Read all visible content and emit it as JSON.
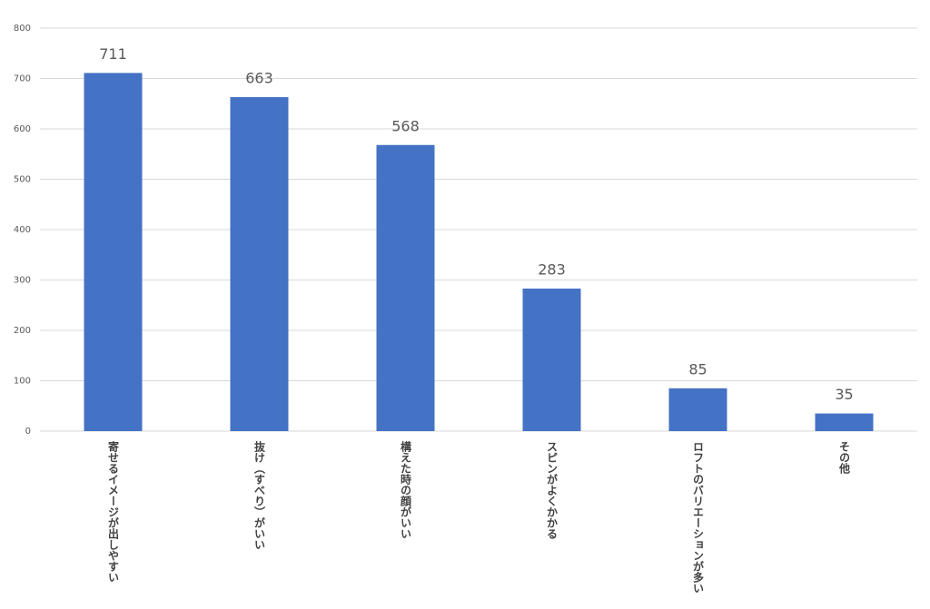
{
  "chart_data": {
    "type": "bar",
    "categories": [
      "寄せるイメージが出しやすい",
      "抜け（すべり）がいい",
      "構えた時の顔がいい",
      "スピンがよくかかる",
      "ロフトのバリエーションが多い",
      "その他"
    ],
    "values": [
      711,
      663,
      568,
      283,
      85,
      35
    ],
    "color": "#4472c4",
    "ylim": [
      0,
      800
    ],
    "yticks": [
      0,
      100,
      200,
      300,
      400,
      500,
      600,
      700,
      800
    ],
    "grid": true
  }
}
